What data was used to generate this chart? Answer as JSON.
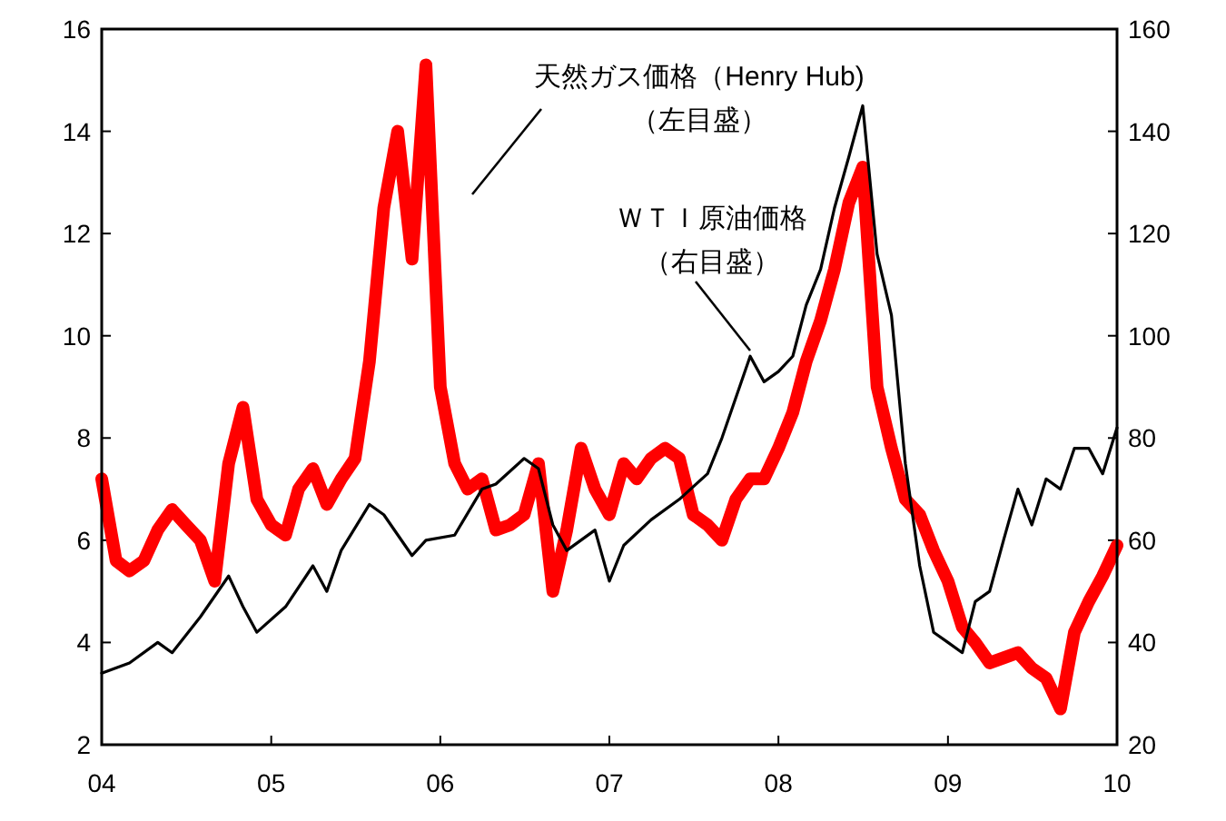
{
  "chart_data": {
    "type": "line",
    "xlim": [
      "2004-01",
      "2010-01"
    ],
    "xticks": [
      {
        "value": "2004-01",
        "label": "04"
      },
      {
        "value": "2005-01",
        "label": "05"
      },
      {
        "value": "2006-01",
        "label": "06"
      },
      {
        "value": "2007-01",
        "label": "07"
      },
      {
        "value": "2008-01",
        "label": "08"
      },
      {
        "value": "2009-01",
        "label": "09"
      },
      {
        "value": "2010-01",
        "label": "10"
      }
    ],
    "ylim": [
      2,
      16
    ],
    "yticks": [
      2,
      4,
      6,
      8,
      10,
      12,
      14,
      16
    ],
    "y2lim": [
      20,
      160
    ],
    "y2ticks": [
      20,
      40,
      60,
      80,
      100,
      120,
      140,
      160
    ],
    "grid": false,
    "line_style": "solid",
    "annotations": [
      "天然ガス価格（Henry Hub)",
      "（左目盛）",
      "ＷＴＩ原油価格",
      "（右目盛）"
    ],
    "series": [
      {
        "color": "#ff0000",
        "x": [
          "2004-01",
          "2004-02",
          "2004-03",
          "2004-04",
          "2004-05",
          "2004-06",
          "2004-07",
          "2004-08",
          "2004-09",
          "2004-10",
          "2004-11",
          "2004-12",
          "2005-01",
          "2005-02",
          "2005-03",
          "2005-04",
          "2005-05",
          "2005-06",
          "2005-07",
          "2005-08",
          "2005-09",
          "2005-10",
          "2005-11",
          "2005-12",
          "2006-01",
          "2006-02",
          "2006-03",
          "2006-04",
          "2006-05",
          "2006-06",
          "2006-07",
          "2006-08",
          "2006-09",
          "2006-10",
          "2006-11",
          "2006-12",
          "2007-01",
          "2007-02",
          "2007-03",
          "2007-04",
          "2007-05",
          "2007-06",
          "2007-07",
          "2007-08",
          "2007-09",
          "2007-10",
          "2007-11",
          "2007-12",
          "2008-01",
          "2008-02",
          "2008-03",
          "2008-04",
          "2008-05",
          "2008-06",
          "2008-07",
          "2008-08",
          "2008-09",
          "2008-10",
          "2008-11",
          "2008-12",
          "2009-01",
          "2009-02",
          "2009-03",
          "2009-04",
          "2009-05",
          "2009-06",
          "2009-07",
          "2009-08",
          "2009-09",
          "2009-10",
          "2009-11",
          "2009-12",
          "2010-01"
        ],
        "values": [
          7.2,
          5.6,
          5.4,
          5.6,
          6.2,
          6.6,
          6.3,
          6.0,
          5.2,
          7.5,
          8.6,
          6.8,
          6.3,
          6.1,
          7.0,
          7.4,
          6.7,
          7.2,
          7.6,
          9.5,
          12.5,
          14.0,
          11.5,
          15.3,
          9.0,
          7.5,
          7.0,
          7.2,
          6.2,
          6.3,
          6.5,
          7.5,
          5.0,
          6.2,
          7.8,
          7.0,
          6.5,
          7.5,
          7.2,
          7.6,
          7.8,
          7.6,
          6.5,
          6.3,
          6.0,
          6.8,
          7.2,
          7.2,
          7.8,
          8.5,
          9.5,
          10.3,
          11.3,
          12.6,
          13.3,
          9.0,
          7.8,
          6.8,
          6.5,
          5.8,
          5.2,
          4.3,
          4.0,
          3.6,
          3.7,
          3.8,
          3.5,
          3.3,
          2.7,
          4.2,
          4.8,
          5.3,
          5.9
        ]
      },
      {
        "color": "#000000",
        "axis": "y2",
        "x": [
          "2004-01",
          "2004-03",
          "2004-05",
          "2004-06",
          "2004-08",
          "2004-10",
          "2004-11",
          "2004-12",
          "2005-02",
          "2005-04",
          "2005-05",
          "2005-06",
          "2005-08",
          "2005-09",
          "2005-11",
          "2005-12",
          "2006-02",
          "2006-04",
          "2006-05",
          "2006-07",
          "2006-08",
          "2006-09",
          "2006-10",
          "2006-12",
          "2007-01",
          "2007-02",
          "2007-04",
          "2007-06",
          "2007-08",
          "2007-09",
          "2007-11",
          "2007-12",
          "2008-01",
          "2008-02",
          "2008-03",
          "2008-04",
          "2008-05",
          "2008-06",
          "2008-07",
          "2008-08",
          "2008-09",
          "2008-10",
          "2008-11",
          "2008-12",
          "2009-01",
          "2009-02",
          "2009-03",
          "2009-04",
          "2009-05",
          "2009-06",
          "2009-07",
          "2009-08",
          "2009-09",
          "2009-10",
          "2009-11",
          "2009-12",
          "2010-01"
        ],
        "values": [
          34,
          36,
          40,
          38,
          45,
          53,
          47,
          42,
          47,
          55,
          50,
          58,
          67,
          65,
          57,
          60,
          61,
          70,
          71,
          76,
          74,
          63,
          58,
          62,
          52,
          59,
          64,
          68,
          73,
          80,
          96,
          91,
          93,
          96,
          106,
          113,
          125,
          135,
          145,
          116,
          104,
          75,
          55,
          42,
          40,
          38,
          48,
          50,
          60,
          70,
          63,
          72,
          70,
          78,
          78,
          73,
          82
        ]
      }
    ]
  }
}
